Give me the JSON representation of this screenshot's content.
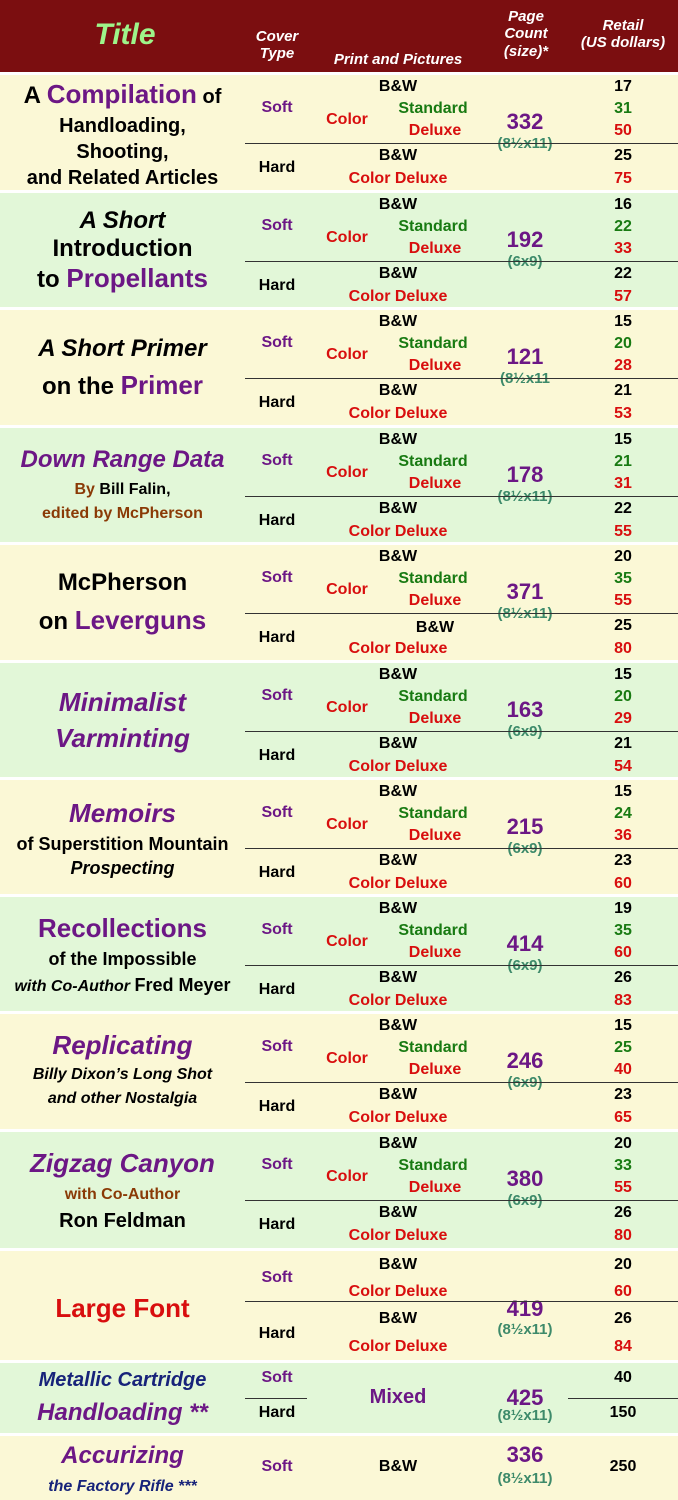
{
  "header": {
    "title": "Title",
    "cover": "Cover\nType",
    "print": "Print and Pictures",
    "pagecount": "Page\nCount\n(size)*",
    "retail": "Retail\n(US dollars)"
  },
  "labels": {
    "soft": "Soft",
    "hard": "Hard",
    "bw": "B&W",
    "color": "Color",
    "standard": "Standard",
    "deluxe": "Deluxe",
    "color_deluxe": "Color Deluxe",
    "mixed": "Mixed"
  },
  "books": [
    {
      "t1": "A ",
      "t2": "Compilation",
      "t3": " of",
      "t4": "Handloading,",
      "t5": "Shooting,",
      "t6": "and Related Articles",
      "pages": "332",
      "size": "(8½x11)",
      "prices": [
        "17",
        "31",
        "50",
        "25",
        "75"
      ]
    },
    {
      "t1": "A Short",
      "t2": "Introduction",
      "t3": "to ",
      "t4": "Propellants",
      "pages": "192",
      "size": "(6x9)",
      "prices": [
        "16",
        "22",
        "33",
        "22",
        "57"
      ]
    },
    {
      "t1": "A Short Primer",
      "t2": "on the ",
      "t3": "Primer",
      "pages": "121",
      "size": "(8½x11",
      "prices": [
        "15",
        "20",
        "28",
        "21",
        "53"
      ]
    },
    {
      "t1": "Down Range Data",
      "t2": "By ",
      "t3": "Bill Falin,",
      "t4": "edited by McPherson",
      "pages": "178",
      "size": "(8½x11)",
      "prices": [
        "15",
        "21",
        "31",
        "22",
        "55"
      ]
    },
    {
      "t1": "McPherson",
      "t2": "on ",
      "t3": "Leverguns",
      "pages": "371",
      "size": "(8½x11)",
      "prices": [
        "20",
        "35",
        "55",
        "25",
        "80"
      ]
    },
    {
      "t1": "Minimalist",
      "t2": "Varminting",
      "pages": "163",
      "size": "(6x9)",
      "prices": [
        "15",
        "20",
        "29",
        "21",
        "54"
      ]
    },
    {
      "t1": "Memoirs",
      "t2": "of Superstition Mountain",
      "t3": "Prospecting",
      "pages": "215",
      "size": "(6x9)",
      "prices": [
        "15",
        "24",
        "36",
        "23",
        "60"
      ]
    },
    {
      "t1": "Recollections",
      "t2": "of the Impossible",
      "t3": "with Co-Author ",
      "t4": "Fred Meyer",
      "pages": "414",
      "size": "(6x9)",
      "prices": [
        "19",
        "35",
        "60",
        "26",
        "83"
      ]
    },
    {
      "t1": "Replicating",
      "t2": "Billy Dixon’s Long Shot",
      "t3": "and other Nostalgia",
      "pages": "246",
      "size": "(6x9)",
      "prices": [
        "15",
        "25",
        "40",
        "23",
        "65"
      ]
    },
    {
      "t1": "Zigzag Canyon",
      "t2": "with Co-Author",
      "t3": "Ron Feldman",
      "pages": "380",
      "size": "(6x9)",
      "prices": [
        "20",
        "33",
        "55",
        "26",
        "80"
      ]
    },
    {
      "t1": "Large Font",
      "pages": "419",
      "size": "(8½x11)",
      "prices": [
        "20",
        "60",
        "26",
        "84"
      ]
    },
    {
      "t1": "Metallic Cartridge",
      "t2": "Handloading **",
      "pages": "425",
      "size": "(8½x11)",
      "prices": [
        "40",
        "150"
      ]
    },
    {
      "t1": "Accurizing",
      "t2": "the Factory Rifle ***",
      "pages": "336",
      "size": "(8½x11)",
      "prices": [
        "250"
      ]
    }
  ],
  "colors": {
    "header_bg": "#7b0e10",
    "title_green": "#9ef58a",
    "purple": "#6c1785",
    "red": "#d80e0e",
    "green": "#187a12",
    "row_yellow": "#fbf8d6",
    "row_green": "#e2f7d8"
  }
}
